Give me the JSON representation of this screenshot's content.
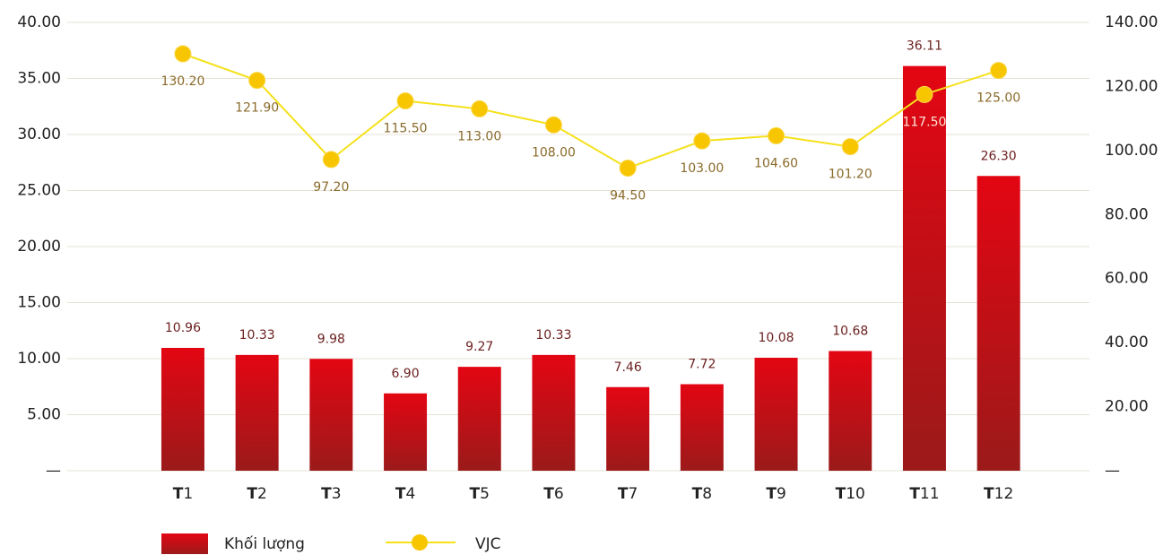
{
  "chart_data": {
    "type": "bar_line",
    "categories": [
      "T1",
      "T2",
      "T3",
      "T4",
      "T5",
      "T6",
      "T7",
      "T8",
      "T9",
      "T10",
      "T11",
      "T12"
    ],
    "series": [
      {
        "name": "Khối lượng",
        "type": "bar",
        "axis": "y",
        "color": "#e30613",
        "values": [
          10.96,
          10.33,
          9.98,
          6.9,
          9.27,
          10.33,
          7.46,
          7.72,
          10.08,
          10.68,
          36.11,
          26.3
        ],
        "value_labels": [
          "10.96",
          "10.33",
          "9.98",
          "6.90",
          "9.27",
          "10.33",
          "7.46",
          "7.72",
          "10.08",
          "10.68",
          "36.11",
          "26.30"
        ]
      },
      {
        "name": "VJC",
        "type": "line",
        "axis": "y2",
        "color": "#f5e11a",
        "values": [
          130.2,
          121.9,
          97.2,
          115.5,
          113,
          108,
          94.5,
          103,
          104.6,
          101.2,
          117.5,
          125
        ],
        "value_labels": [
          "130.20",
          "121.90",
          "97.20",
          "115.50",
          "113.00",
          "108.00",
          "94.50",
          "103.00",
          "104.60",
          "101.20",
          "117.50",
          "125.00"
        ]
      }
    ],
    "ylim": [
      0,
      40
    ],
    "yticks": [
      {
        "value": 0,
        "label": "—"
      },
      {
        "value": 5,
        "label": "5.00"
      },
      {
        "value": 10,
        "label": "10.00"
      },
      {
        "value": 15,
        "label": "15.00"
      },
      {
        "value": 20,
        "label": "20.00"
      },
      {
        "value": 25,
        "label": "25.00"
      },
      {
        "value": 30,
        "label": "30.00"
      },
      {
        "value": 35,
        "label": "35.00"
      },
      {
        "value": 40,
        "label": "40.00"
      }
    ],
    "y2lim": [
      0,
      140
    ],
    "y2ticks": [
      {
        "value": 0,
        "label": "—"
      },
      {
        "value": 20,
        "label": "20.00"
      },
      {
        "value": 40,
        "label": "40.00"
      },
      {
        "value": 60,
        "label": "60.00"
      },
      {
        "value": 80,
        "label": "80.00"
      },
      {
        "value": 100,
        "label": "100.00"
      },
      {
        "value": 120,
        "label": "120.00"
      },
      {
        "value": 140,
        "label": "140.00"
      }
    ],
    "grid": true
  }
}
